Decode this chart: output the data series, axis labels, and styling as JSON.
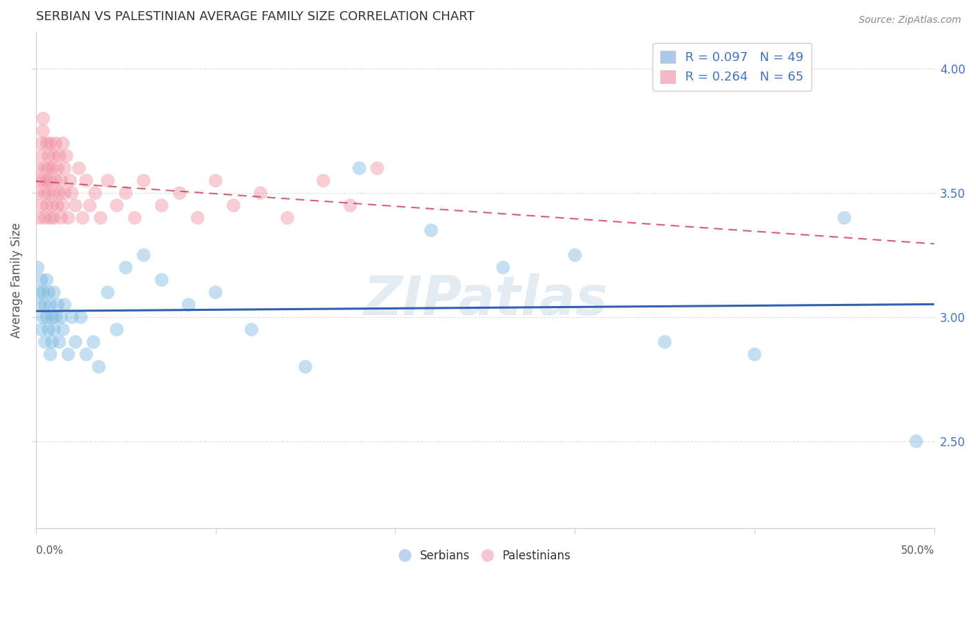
{
  "title": "SERBIAN VS PALESTINIAN AVERAGE FAMILY SIZE CORRELATION CHART",
  "source": "Source: ZipAtlas.com",
  "ylabel": "Average Family Size",
  "watermark": "ZIPatlas",
  "legend_serbian_color": "#aac9e8",
  "legend_palestinian_color": "#f5b8c8",
  "serbian_color": "#7ab8e0",
  "palestinian_color": "#f090a0",
  "serbian_line_color": "#3060b0",
  "palestinian_line_color": "#d04060",
  "R_serbian": 0.097,
  "N_serbian": 49,
  "R_palestinian": 0.264,
  "N_palestinian": 65,
  "xlim": [
    0.0,
    0.5
  ],
  "ylim": [
    2.15,
    4.15
  ],
  "right_yticks": [
    2.5,
    3.0,
    3.5,
    4.0
  ],
  "background_color": "#ffffff",
  "grid_color": "#dddddd",
  "title_color": "#333333",
  "label_color": "#555555",
  "stat_text_color": "#4472c4",
  "right_axis_color": "#4472c4",
  "serbian_x": [
    0.001,
    0.002,
    0.002,
    0.003,
    0.003,
    0.004,
    0.004,
    0.005,
    0.005,
    0.006,
    0.006,
    0.007,
    0.007,
    0.008,
    0.008,
    0.009,
    0.009,
    0.01,
    0.01,
    0.011,
    0.012,
    0.013,
    0.014,
    0.015,
    0.016,
    0.018,
    0.02,
    0.022,
    0.025,
    0.028,
    0.032,
    0.035,
    0.04,
    0.045,
    0.05,
    0.06,
    0.07,
    0.085,
    0.1,
    0.12,
    0.15,
    0.18,
    0.22,
    0.26,
    0.3,
    0.35,
    0.4,
    0.45,
    0.49
  ],
  "serbian_y": [
    3.2,
    3.1,
    3.05,
    3.15,
    2.95,
    3.0,
    3.1,
    3.05,
    2.9,
    3.15,
    3.0,
    2.95,
    3.1,
    3.05,
    2.85,
    3.0,
    2.9,
    3.1,
    2.95,
    3.0,
    3.05,
    2.9,
    3.0,
    2.95,
    3.05,
    2.85,
    3.0,
    2.9,
    3.0,
    2.85,
    2.9,
    2.8,
    3.1,
    2.95,
    3.2,
    3.25,
    3.15,
    3.05,
    3.1,
    2.95,
    2.8,
    3.6,
    3.35,
    3.2,
    3.25,
    2.9,
    2.85,
    3.4,
    2.5
  ],
  "palestinian_x": [
    0.001,
    0.001,
    0.002,
    0.002,
    0.003,
    0.003,
    0.003,
    0.004,
    0.004,
    0.004,
    0.005,
    0.005,
    0.005,
    0.006,
    0.006,
    0.006,
    0.007,
    0.007,
    0.007,
    0.008,
    0.008,
    0.008,
    0.009,
    0.009,
    0.01,
    0.01,
    0.01,
    0.011,
    0.011,
    0.012,
    0.012,
    0.013,
    0.013,
    0.014,
    0.014,
    0.015,
    0.015,
    0.016,
    0.016,
    0.017,
    0.018,
    0.019,
    0.02,
    0.022,
    0.024,
    0.026,
    0.028,
    0.03,
    0.033,
    0.036,
    0.04,
    0.045,
    0.05,
    0.055,
    0.06,
    0.07,
    0.08,
    0.09,
    0.1,
    0.11,
    0.125,
    0.14,
    0.16,
    0.175,
    0.19
  ],
  "palestinian_y": [
    3.5,
    3.6,
    3.4,
    3.55,
    3.65,
    3.7,
    3.45,
    3.75,
    3.55,
    3.8,
    3.5,
    3.6,
    3.4,
    3.55,
    3.7,
    3.45,
    3.6,
    3.5,
    3.65,
    3.55,
    3.4,
    3.7,
    3.45,
    3.6,
    3.5,
    3.65,
    3.4,
    3.55,
    3.7,
    3.45,
    3.6,
    3.5,
    3.65,
    3.4,
    3.55,
    3.7,
    3.45,
    3.6,
    3.5,
    3.65,
    3.4,
    3.55,
    3.5,
    3.45,
    3.6,
    3.4,
    3.55,
    3.45,
    3.5,
    3.4,
    3.55,
    3.45,
    3.5,
    3.4,
    3.55,
    3.45,
    3.5,
    3.4,
    3.55,
    3.45,
    3.5,
    3.4,
    3.55,
    3.45,
    3.6
  ]
}
